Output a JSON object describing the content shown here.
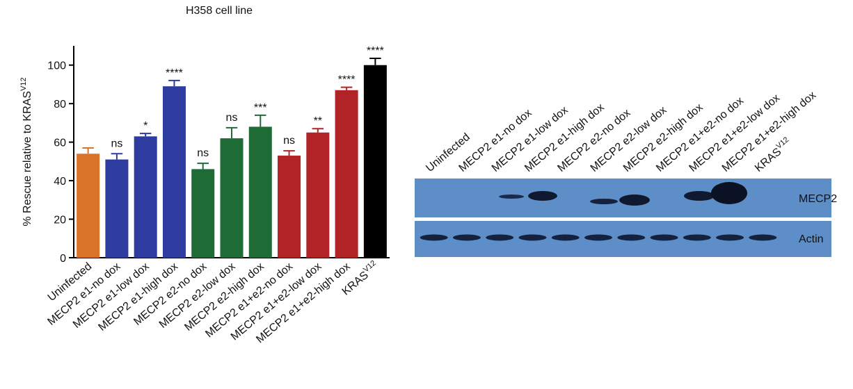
{
  "chart_data": {
    "type": "bar",
    "title": "H358 cell line",
    "ylabel": "% Rescue relative to KRAS",
    "ylabel_superscript": "V12",
    "categories": [
      "Uninfected",
      "MECP2 e1-no dox",
      "MECP2 e1-low dox",
      "MECP2 e1-high dox",
      "MECP2 e2-no dox",
      "MECP2 e2-low dox",
      "MECP2 e2-high dox",
      "MECP2 e1+e2-no dox",
      "MECP2 e1+e2-low dox",
      "MECP2 e1+e2-high dox",
      "KRAS"
    ],
    "category_superscripts": [
      null,
      null,
      null,
      null,
      null,
      null,
      null,
      null,
      null,
      null,
      "V12"
    ],
    "values": [
      54,
      51,
      63,
      89,
      46,
      62,
      68,
      53,
      65,
      87,
      100
    ],
    "errors": [
      3,
      3,
      1.5,
      3,
      3,
      5.5,
      6,
      2.5,
      2,
      1.5,
      3.5
    ],
    "annotations": [
      null,
      "ns",
      "*",
      "****",
      "ns",
      "ns",
      "***",
      "ns",
      "**",
      "****",
      "****"
    ],
    "colors": [
      "#d9732a",
      "#2e3c9f",
      "#2e3c9f",
      "#2e3c9f",
      "#1f6b35",
      "#1f6b35",
      "#1f6b35",
      "#b22328",
      "#b22328",
      "#b22328",
      "#000000"
    ],
    "ylim": [
      0,
      110
    ],
    "yticks": [
      0,
      20,
      40,
      60,
      80,
      100
    ]
  },
  "blot": {
    "lanes": [
      "Uninfected",
      "MECP2 e1-no dox",
      "MECP2 e1-low dox",
      "MECP2 e1-high dox",
      "MECP2 e2-no dox",
      "MECP2 e2-low dox",
      "MECP2 e2-high dox",
      "MECP2 e1+e2-no dox",
      "MECP2 e1+e2-low dox",
      "MECP2 e1+e2-high dox",
      "KRAS"
    ],
    "lane_superscripts": [
      null,
      null,
      null,
      null,
      null,
      null,
      null,
      null,
      null,
      null,
      "V12"
    ],
    "bands": [
      "MECP2",
      "Actin"
    ]
  }
}
